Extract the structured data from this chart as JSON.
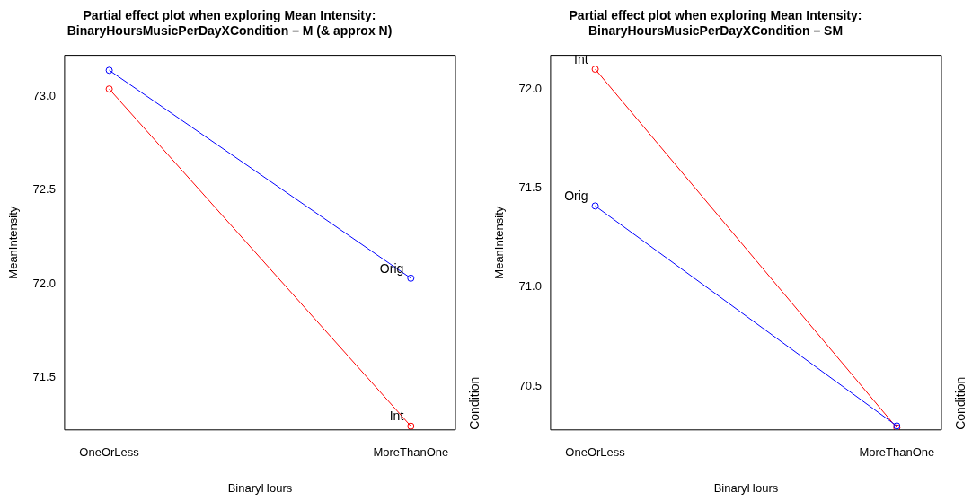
{
  "chart_data": [
    {
      "type": "line",
      "title": "Partial effect plot when exploring Mean Intensity:\nBinaryHoursMusicPerDayXCondition – M (& approx N)",
      "xlabel": "BinaryHours",
      "ylabel": "MeanIntensity",
      "legend_title": "Condition",
      "categories": [
        "OneOrLess",
        "MoreThanOne"
      ],
      "ylim": [
        71.22,
        73.22
      ],
      "yticks": [
        71.5,
        {
          "value": 72,
          "label": "72.0"
        },
        72.5,
        {
          "value": 73,
          "label": "73.0"
        }
      ],
      "marker": "circle",
      "line_style": "solid",
      "series": [
        {
          "name": "Orig",
          "color": "#0000ff",
          "values": [
            73.14,
            72.03
          ]
        },
        {
          "name": "Int",
          "color": "#ff0000",
          "values": [
            73.04,
            71.24
          ]
        }
      ]
    },
    {
      "type": "line",
      "title": "Partial effect plot when exploring Mean Intensity:\nBinaryHoursMusicPerDayXCondition – SM",
      "xlabel": "BinaryHours",
      "ylabel": "MeanIntensity",
      "legend_title": "Condition",
      "categories": [
        "OneOrLess",
        "MoreThanOne"
      ],
      "ylim": [
        70.28,
        72.17
      ],
      "yticks": [
        70.5,
        {
          "value": 71,
          "label": "71.0"
        },
        71.5,
        {
          "value": 72,
          "label": "72.0"
        }
      ],
      "marker": "circle",
      "line_style": "solid",
      "series": [
        {
          "name": "Orig",
          "color": "#0000ff",
          "values": [
            71.41,
            70.3
          ]
        },
        {
          "name": "Int",
          "color": "#ff0000",
          "values": [
            72.1,
            70.29
          ]
        }
      ]
    }
  ]
}
